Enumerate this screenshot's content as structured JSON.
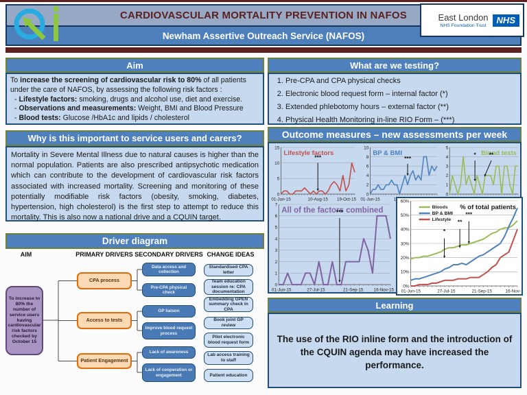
{
  "header": {
    "title": "CARDIOVASCULAR MORTALITY PREVENTION IN NAFOS",
    "subtitle": "Newham Assertive Outreach Service (NAFOS)",
    "nhs": {
      "org": "East London",
      "trust": "NHS Foundation Trust",
      "badge": "NHS"
    }
  },
  "aim": {
    "title": "Aim",
    "p_pre": "To ",
    "p_bold": "increase the screening of cardiovascular risk to 80%",
    "p_post": " of all patients under the care of NAFOS, by assessing the following risk factors :",
    "bullets": [
      {
        "dash": "- ",
        "bold": "Lifestyle factors:",
        "rest": " smoking, drugs and alcohol use, diet and exercise."
      },
      {
        "dash": "- ",
        "bold": "Observations and measurements:",
        "rest": " Weight, BMI and Blood Pressure"
      },
      {
        "dash": "- ",
        "bold": "Blood tests:",
        "rest": " Glucose /HbA1c and lipids / cholesterol"
      }
    ]
  },
  "why": {
    "title": "Why is this important to service users and carers?",
    "body": "Mortality in Severe Mental Illness due to natural causes is higher than the normal population. Patients are also prescribed antipsychotic medication which can contribute to the development of cardiovascular risk factors associated with increased mortality. Screening and monitoring of these potentially modifiable risk factors (obesity, smoking, diabetes, hypertension, high cholesterol) is the first step to attempt to reduce this mortality. This is also now a national drive and a CQUIN target."
  },
  "driver": {
    "title": "Driver diagram",
    "column_labels": [
      "AIM",
      "PRIMARY DRIVERS",
      "SECONDARY DRIVERS",
      "CHANGE IDEAS"
    ],
    "aim_box": "To increase to 80% the number of service users having cardiovascular risk factors checked by October 15",
    "primary": [
      "CPA process",
      "Access to tests",
      "Patient Engagement"
    ],
    "secondary": [
      "Data access and collection",
      "Pre-CPA physical check",
      "GP liaison",
      "Improve blood request process",
      "Lack of awareness",
      "Lack of cooperation or engagement"
    ],
    "change_ideas": [
      "Standardised CPA letter",
      "Team education session re: CPA documentation",
      "Embedding GPEN summary check in CPA",
      "Book joint GP review",
      "Pilot electronic blood request form",
      "Lab access training to staff",
      "Patient education"
    ]
  },
  "testing": {
    "title": "What are we testing?",
    "items": [
      "Pre-CPA and CPA physical checks",
      "Electronic blood request form – internal factor (*)",
      "Extended phlebotomy hours – external factor (**)",
      "Physical Health Monitoring in-line RIO Form – (***)"
    ]
  },
  "outcome": {
    "title": "Outcome measures – new assessments per week"
  },
  "learning": {
    "title": "Learning",
    "body": "The use of the RIO inline form and the introduction of the CQUIN agenda may have increased the performance."
  },
  "chart_data": [
    {
      "type": "line",
      "title": "Lifestyle factors",
      "title_color": "#c0504d",
      "title_align": "left",
      "xtick_labels": [
        "01-Jun-15",
        "10-Aug-15",
        "19-Oct-15"
      ],
      "ylim": [
        0,
        15
      ],
      "yticks": [
        0,
        5,
        10,
        15
      ],
      "series": [
        {
          "name": "Lifestyle factors",
          "color": "#c0504d",
          "values": [
            0,
            1,
            1,
            0,
            0,
            1,
            1,
            1,
            2,
            1,
            0,
            1,
            0,
            1,
            1,
            0,
            1,
            3,
            4,
            3,
            1,
            6,
            1,
            3,
            10,
            7
          ]
        }
      ],
      "annotations": [
        {
          "label": "***",
          "x": 0.5,
          "label_y": 0.26,
          "y1": 0.33,
          "y2": 0.93
        }
      ]
    },
    {
      "type": "line",
      "title": "BP & BMI",
      "title_color": "#4f81bd",
      "title_align": "left",
      "xtick_labels": [
        "01-Jun-15",
        "10-Aug-15",
        "19-Oct-15"
      ],
      "ylim": [
        0,
        10
      ],
      "yticks": [
        0,
        2,
        4,
        6,
        8,
        10
      ],
      "series": [
        {
          "name": "BP & BMI",
          "color": "#4f81bd",
          "values": [
            0,
            1,
            1,
            2,
            1,
            1,
            2,
            2,
            3,
            2,
            2,
            0,
            2,
            4,
            2,
            4,
            5,
            3,
            4,
            3,
            8,
            8,
            4,
            6,
            5,
            6
          ]
        }
      ],
      "annotations": [
        {
          "label": "***",
          "x": 0.56,
          "label_y": 0.28,
          "y1": 0.35,
          "y2": 0.6
        }
      ]
    },
    {
      "type": "line",
      "title": "Blood tests",
      "title_color": "#9bbb59",
      "title_align": "right",
      "xtick_labels": [
        "01-Jun-15",
        "10-Aug-15",
        "19-Oct-15"
      ],
      "ylim": [
        0,
        5
      ],
      "yticks": [
        0,
        1,
        2,
        3,
        4,
        5
      ],
      "series": [
        {
          "name": "Blood tests",
          "color": "#9bbb59",
          "values": [
            0,
            2,
            1,
            0,
            1,
            4,
            1,
            2,
            1,
            0,
            2,
            1,
            0,
            2,
            2,
            2,
            1,
            3,
            3,
            0,
            3,
            3,
            1,
            0,
            3,
            3
          ]
        }
      ],
      "annotations": [
        {
          "label": "*",
          "x": 0.37,
          "label_y": 0.2,
          "y1": 0.28,
          "y2": 0.72
        },
        {
          "label": "**",
          "x": 0.61,
          "label_y": 0.2,
          "y1": 0.28,
          "y2": 0.62,
          "x2": 0.51
        }
      ]
    },
    {
      "type": "line",
      "title": "All of the factors combined",
      "title_color": "#8064a2",
      "title_align": "left",
      "xtick_labels": [
        "01-Jun-15",
        "27-Jul-15",
        "21-Sep-15",
        "16-Nov-15"
      ],
      "ylim": [
        0,
        7
      ],
      "yticks": [
        0,
        1,
        2,
        3,
        4,
        5,
        6,
        7
      ],
      "series": [
        {
          "name": "All of the factors combined",
          "color": "#8064a2",
          "values": [
            0,
            0,
            1,
            0,
            0,
            0,
            1,
            1,
            0,
            2,
            0,
            0,
            2,
            0,
            0,
            2,
            2,
            2,
            2,
            4,
            3,
            1,
            6,
            6,
            6,
            4
          ]
        }
      ],
      "annotations": [
        {
          "label": "***",
          "x": 0.545,
          "label_y": 0.12,
          "y1": 0.17,
          "y2": 0.97
        }
      ]
    },
    {
      "type": "line",
      "title": "% of total patients",
      "title_color": "#1a1a1a",
      "title_align": "right",
      "xtick_labels": [
        "01-Jun-15",
        "27-Jul-15",
        "21-Sep-15",
        "16-Nov-"
      ],
      "ylim": [
        0,
        60
      ],
      "yticks": [
        0,
        10,
        20,
        30,
        40,
        50,
        60
      ],
      "ytick_labels": [
        "0%",
        "10%",
        "20%",
        "30%",
        "40%",
        "50%",
        "60%"
      ],
      "legend": [
        {
          "name": "Bloods",
          "color": "#9bbb59"
        },
        {
          "name": "BP & BMI",
          "color": "#4f81bd"
        },
        {
          "name": "Lifestyle",
          "color": "#c0504d"
        }
      ],
      "series": [
        {
          "name": "Bloods",
          "color": "#9bbb59",
          "values": [
            19,
            20,
            20,
            21,
            21,
            22,
            23,
            24,
            26,
            27,
            27,
            28,
            29,
            29,
            30,
            31,
            32,
            33,
            35,
            37,
            38,
            40,
            41,
            41,
            43,
            46
          ]
        },
        {
          "name": "BP & BMI",
          "color": "#4f81bd",
          "values": [
            4,
            5,
            5,
            6,
            7,
            8,
            9,
            10,
            12,
            13,
            15,
            15,
            16,
            15,
            17,
            19,
            21,
            22,
            24,
            26,
            28,
            30,
            35,
            42,
            48,
            55
          ]
        },
        {
          "name": "Lifestyle",
          "color": "#c0504d",
          "values": [
            0,
            0,
            1,
            1,
            1,
            2,
            2,
            3,
            4,
            4,
            4,
            5,
            5,
            5,
            6,
            6,
            6,
            8,
            10,
            13,
            15,
            20,
            22,
            24,
            32,
            40
          ]
        }
      ],
      "annotations": [
        {
          "label": "*",
          "x": 0.315,
          "label_y": 0.38,
          "y1": 0.44,
          "y2": 0.67
        },
        {
          "label": "**",
          "x": 0.46,
          "label_y": 0.27,
          "y1": 0.33,
          "y2": 0.55
        },
        {
          "label": "***",
          "x": 0.545,
          "label_y": 0.18,
          "y1": 0.24,
          "y2": 0.5
        }
      ]
    }
  ]
}
